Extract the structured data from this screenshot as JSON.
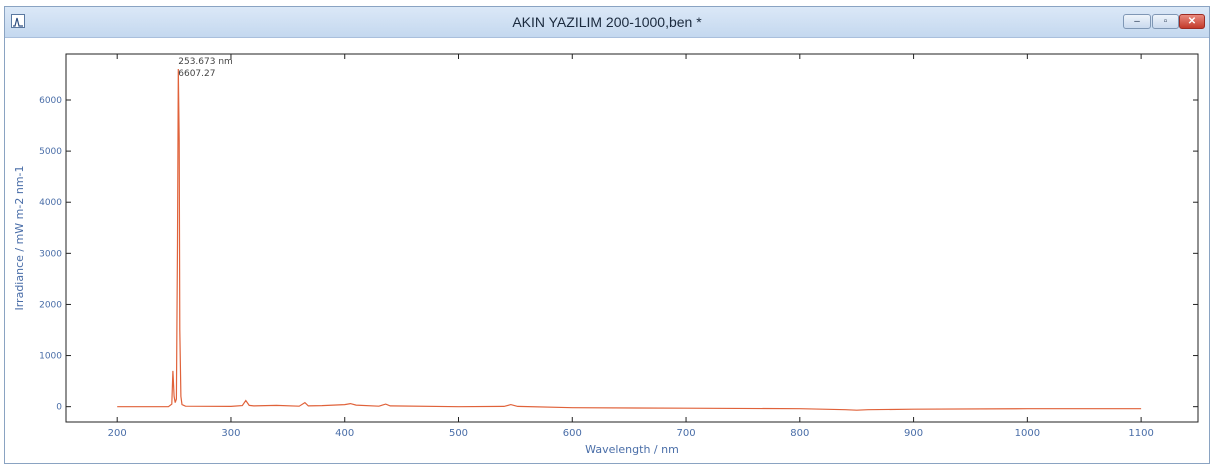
{
  "window": {
    "title": "AKIN YAZILIM 200-1000,ben *",
    "buttons": {
      "minimize_icon": "minimize-icon",
      "maximize_icon": "maximize-icon",
      "close_icon": "close-icon"
    },
    "colors": {
      "accent": "#c4d8ef",
      "line": "#e0623a",
      "peak": "#8b3a1e"
    }
  },
  "chart_data": {
    "type": "line",
    "xlabel": "Wavelength / nm",
    "ylabel": "Irradiance / mW m-2 nm-1",
    "xlim": [
      155,
      1150
    ],
    "ylim": [
      -300,
      6900
    ],
    "x_ticks": [
      200,
      300,
      400,
      500,
      600,
      700,
      800,
      900,
      1000,
      1100
    ],
    "y_ticks": [
      0,
      1000,
      2000,
      3000,
      4000,
      5000,
      6000
    ],
    "annotation": {
      "line1": "253.673 nm",
      "line2": "6607.27",
      "x": 253.673,
      "y": 6607.27
    },
    "grid": false,
    "series": [
      {
        "x": [
          200,
          245,
          248,
          249,
          250,
          251,
          252,
          253,
          253.673,
          254.5,
          255,
          256,
          257,
          260,
          300,
          310,
          313,
          316,
          320,
          340,
          360,
          365,
          368,
          380,
          400,
          405,
          410,
          430,
          436,
          440,
          500,
          540,
          546,
          552,
          600,
          700,
          800,
          840,
          850,
          860,
          900,
          1000,
          1100
        ],
        "y": [
          0,
          0,
          50,
          700,
          200,
          80,
          150,
          3200,
          6607.27,
          5200,
          1500,
          200,
          40,
          10,
          5,
          20,
          120,
          25,
          15,
          25,
          10,
          80,
          15,
          20,
          40,
          60,
          30,
          10,
          50,
          15,
          0,
          5,
          40,
          5,
          -20,
          -30,
          -40,
          -60,
          -70,
          -60,
          -50,
          -40,
          -40
        ]
      }
    ]
  }
}
